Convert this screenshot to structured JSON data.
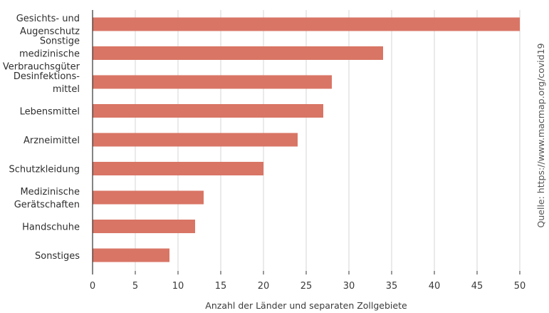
{
  "chart_data": {
    "type": "bar",
    "orientation": "horizontal",
    "categories": [
      [
        "Gesichts- und",
        "Augenschutz"
      ],
      [
        "Sonstige",
        "medizinische",
        "Verbrauchsgüter"
      ],
      [
        "Desinfektions-",
        "mittel"
      ],
      [
        "Lebensmittel"
      ],
      [
        "Arzneimittel"
      ],
      [
        "Schutzkleidung"
      ],
      [
        "Medizinische",
        "Gerätschaften"
      ],
      [
        "Handschuhe"
      ],
      [
        "Sonstiges"
      ]
    ],
    "values": [
      50,
      34,
      28,
      27,
      24,
      20,
      13,
      12,
      9
    ],
    "xlabel": "Anzahl der Länder und separaten Zollgebiete",
    "ylabel": "",
    "xlim": [
      0,
      50
    ],
    "xticks": [
      0,
      5,
      10,
      15,
      20,
      25,
      30,
      35,
      40,
      45,
      50
    ],
    "grid": true,
    "bar_color": "#d97565",
    "grid_color": "#d4d4d4",
    "axis_color": "#333333"
  },
  "source": "Quelle: https://www.macmap.org/covid19"
}
